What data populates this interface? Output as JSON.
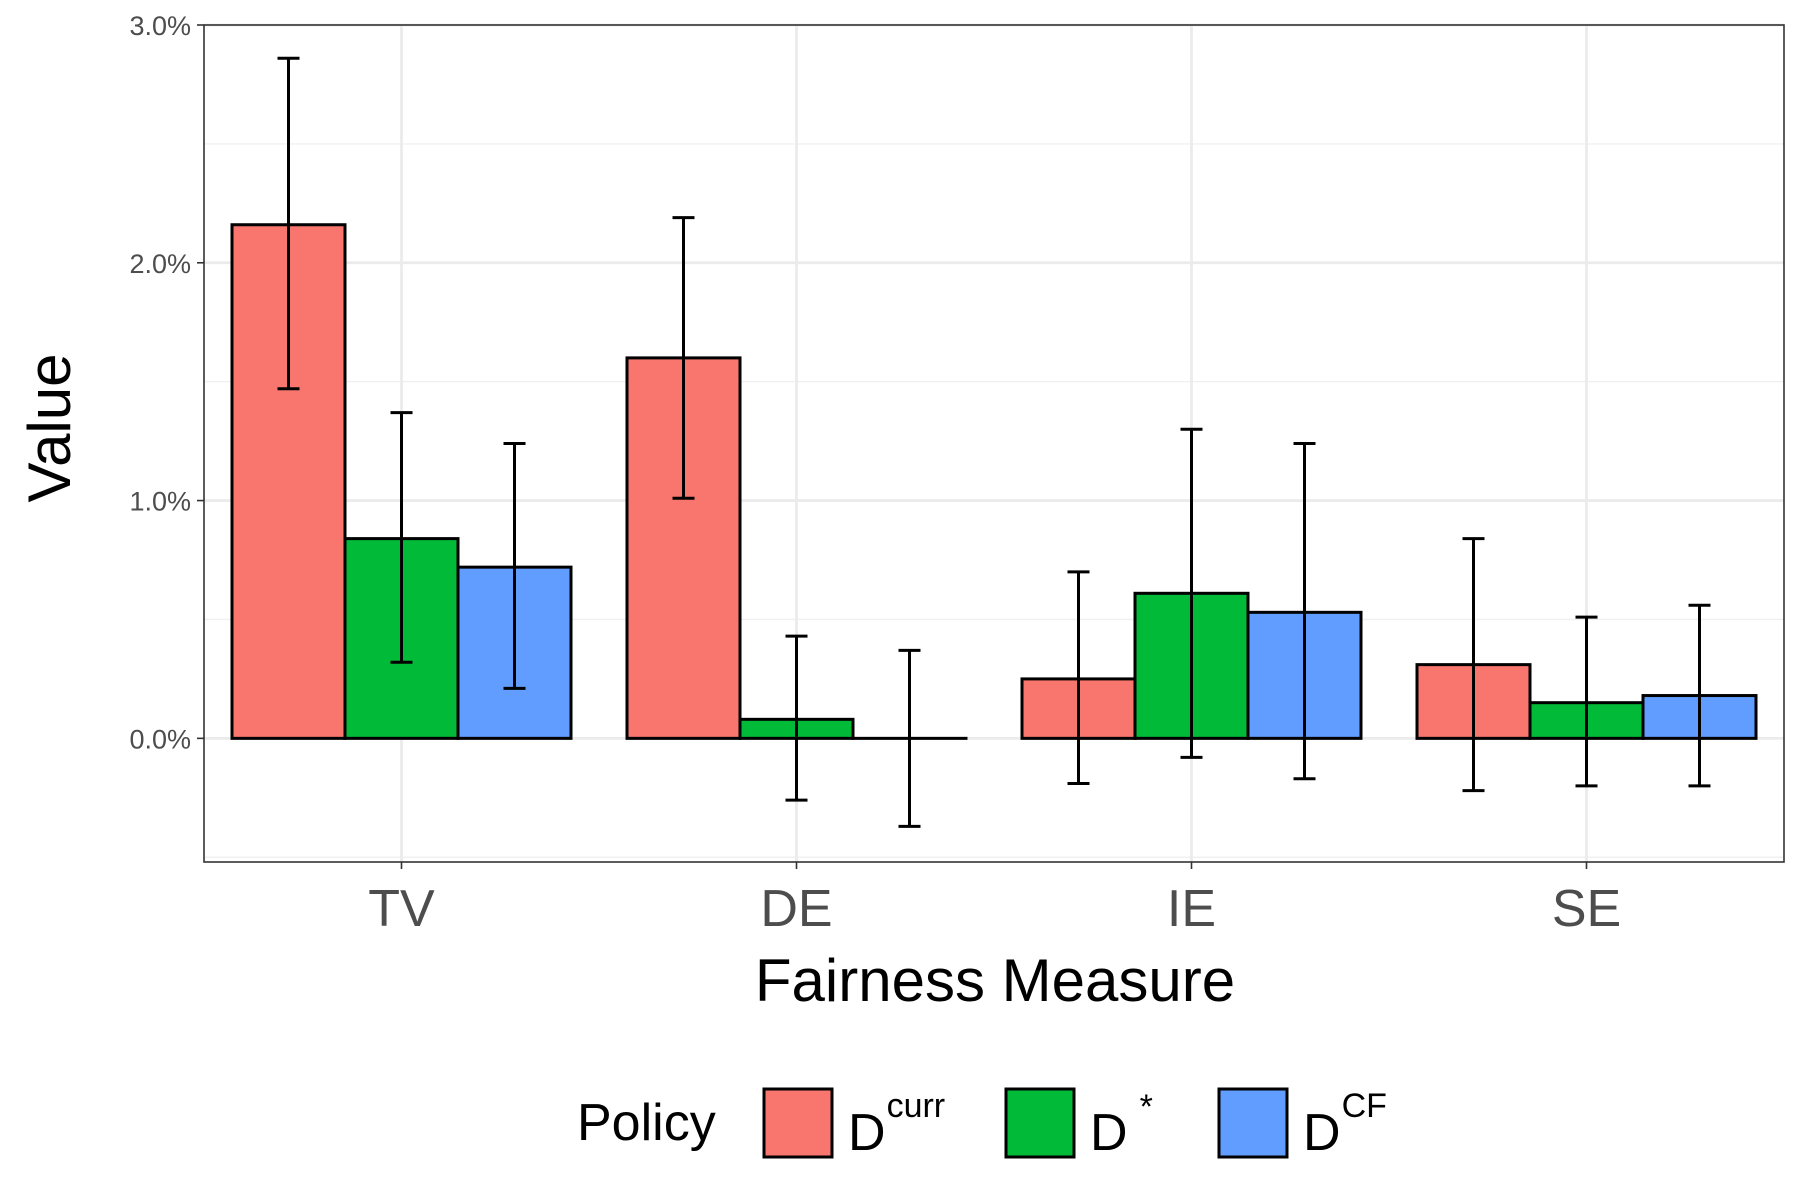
{
  "chart_data": {
    "type": "bar",
    "xlabel": "Fairness Measure",
    "ylabel": "Value",
    "categories": [
      "TV",
      "DE",
      "IE",
      "SE"
    ],
    "ylim": [
      -0.0052,
      0.03
    ],
    "yticks": [
      0.0,
      0.01,
      0.02,
      0.03
    ],
    "yticklabels": [
      "0.0%",
      "1.0%",
      "2.0%",
      "3.0%"
    ],
    "grid": true,
    "legend": {
      "title": "Policy",
      "position": "bottom",
      "items": [
        {
          "base": "D",
          "sup": "curr"
        },
        {
          "base": "D",
          "sup": "*"
        },
        {
          "base": "D",
          "sup": "CF"
        }
      ]
    },
    "series": [
      {
        "color": "#F8766D",
        "values": [
          0.0216,
          0.016,
          0.0025,
          0.0031
        ],
        "err_low": [
          0.0147,
          0.0101,
          -0.0019,
          -0.0022
        ],
        "err_high": [
          0.0286,
          0.0219,
          0.007,
          0.0084
        ]
      },
      {
        "color": "#00BA38",
        "values": [
          0.0084,
          0.0008,
          0.0061,
          0.0015
        ],
        "err_low": [
          0.0032,
          -0.0026,
          -0.0008,
          -0.002
        ],
        "err_high": [
          0.0137,
          0.0043,
          0.013,
          0.0051
        ]
      },
      {
        "color": "#619CFF",
        "values": [
          0.0072,
          0.0,
          0.0053,
          0.0018
        ],
        "err_low": [
          0.0021,
          -0.0037,
          -0.0017,
          -0.002
        ],
        "err_high": [
          0.0124,
          0.0037,
          0.0124,
          0.0056
        ]
      }
    ]
  }
}
